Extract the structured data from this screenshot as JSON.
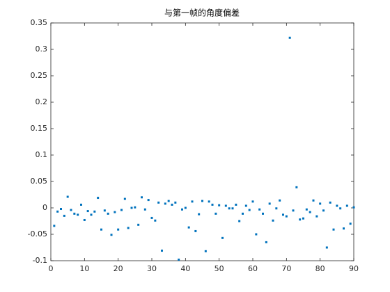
{
  "chart_data": {
    "type": "scatter",
    "title": "与第一帧的角度偏差",
    "x": [
      1,
      2,
      3,
      4,
      5,
      6,
      7,
      8,
      9,
      10,
      11,
      12,
      13,
      14,
      15,
      16,
      17,
      18,
      19,
      20,
      21,
      22,
      23,
      24,
      25,
      26,
      27,
      28,
      29,
      30,
      31,
      32,
      33,
      34,
      35,
      36,
      37,
      38,
      39,
      40,
      41,
      42,
      43,
      44,
      45,
      46,
      47,
      48,
      49,
      50,
      51,
      52,
      53,
      54,
      55,
      56,
      57,
      58,
      59,
      60,
      61,
      62,
      63,
      64,
      65,
      66,
      67,
      68,
      69,
      70,
      71,
      72,
      73,
      74,
      75,
      76,
      77,
      78,
      79,
      80,
      81,
      82,
      83,
      84,
      85,
      86,
      87,
      88,
      89,
      90
    ],
    "values": [
      -0.034,
      -0.007,
      -0.002,
      -0.015,
      0.021,
      -0.004,
      -0.011,
      -0.013,
      0.006,
      -0.023,
      -0.006,
      -0.013,
      -0.007,
      0.019,
      -0.041,
      -0.005,
      -0.011,
      -0.051,
      -0.008,
      -0.041,
      -0.004,
      0.017,
      -0.038,
      0,
      0.001,
      -0.032,
      0.02,
      -0.003,
      0.015,
      -0.019,
      -0.024,
      0.01,
      -0.081,
      0.008,
      0.013,
      0.006,
      0.01,
      -0.098,
      -0.003,
      0,
      -0.037,
      0.012,
      -0.044,
      -0.012,
      0.013,
      -0.082,
      0.012,
      0.006,
      -0.011,
      0.005,
      -0.057,
      0.004,
      -0.001,
      -0.001,
      0.006,
      -0.025,
      -0.011,
      0.004,
      -0.004,
      0.012,
      -0.05,
      -0.003,
      -0.011,
      -0.065,
      0.008,
      -0.024,
      -0.001,
      0.014,
      -0.013,
      -0.016,
      0.322,
      -0.005,
      0.039,
      -0.022,
      -0.02,
      -0.003,
      -0.008,
      0.014,
      -0.016,
      0.008,
      -0.005,
      -0.075,
      0.01,
      -0.041,
      0.004,
      -0.001,
      -0.039,
      0.004,
      -0.03,
      0.001
    ],
    "color": "#0072bd",
    "xlim": [
      0,
      90
    ],
    "xticks": [
      0,
      10,
      20,
      30,
      40,
      50,
      60,
      70,
      80,
      90
    ],
    "ylim": [
      -0.1,
      0.35
    ],
    "yticks": [
      -0.1,
      -0.05,
      0,
      0.05,
      0.1,
      0.15,
      0.2,
      0.25,
      0.3,
      0.35
    ]
  }
}
